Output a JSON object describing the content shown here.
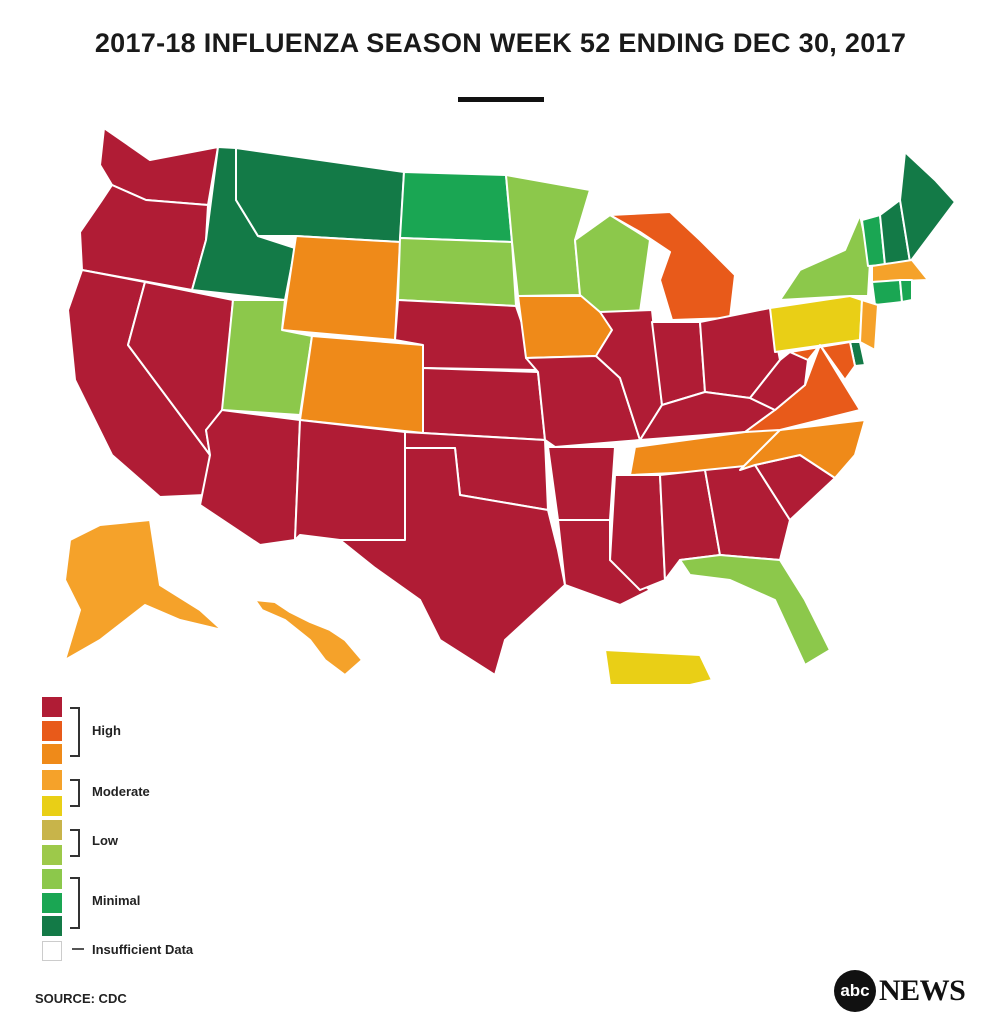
{
  "title": "2017-18 INFLUENZA SEASON WEEK 52 ENDING DEC 30, 2017",
  "source": "SOURCE: CDC",
  "logo": {
    "circle": "abc",
    "word": "NEWS"
  },
  "colors": {
    "high1": "#b01c35",
    "high2": "#e85a1a",
    "high3": "#ef8a19",
    "moderate1": "#f5a22a",
    "moderate2": "#e9cf16",
    "low1": "#c8b44a",
    "low2": "#9dc94a",
    "minimal1": "#8cc84b",
    "minimal2": "#1aa653",
    "minimal3": "#137a47",
    "insufficient": "#ffffff"
  },
  "legend": {
    "high": "High",
    "moderate": "Moderate",
    "low": "Low",
    "minimal": "Minimal",
    "insufficient": "Insufficient Data"
  },
  "states": [
    {
      "id": "WA",
      "level": "high1"
    },
    {
      "id": "OR",
      "level": "high1"
    },
    {
      "id": "CA",
      "level": "high1"
    },
    {
      "id": "NV",
      "level": "high1"
    },
    {
      "id": "ID",
      "level": "minimal3"
    },
    {
      "id": "MT",
      "level": "minimal3"
    },
    {
      "id": "WY",
      "level": "high3"
    },
    {
      "id": "UT",
      "level": "minimal1"
    },
    {
      "id": "CO",
      "level": "high3"
    },
    {
      "id": "AZ",
      "level": "high1"
    },
    {
      "id": "NM",
      "level": "high1"
    },
    {
      "id": "ND",
      "level": "minimal2"
    },
    {
      "id": "SD",
      "level": "minimal1"
    },
    {
      "id": "NE",
      "level": "high1"
    },
    {
      "id": "KS",
      "level": "high1"
    },
    {
      "id": "OK",
      "level": "high1"
    },
    {
      "id": "TX",
      "level": "high1"
    },
    {
      "id": "MN",
      "level": "minimal1"
    },
    {
      "id": "IA",
      "level": "high3"
    },
    {
      "id": "MO",
      "level": "high1"
    },
    {
      "id": "AR",
      "level": "high1"
    },
    {
      "id": "LA",
      "level": "high1"
    },
    {
      "id": "WI",
      "level": "minimal1"
    },
    {
      "id": "IL",
      "level": "high1"
    },
    {
      "id": "MI",
      "level": "high2"
    },
    {
      "id": "IN",
      "level": "high1"
    },
    {
      "id": "OH",
      "level": "high1"
    },
    {
      "id": "KY",
      "level": "high1"
    },
    {
      "id": "TN",
      "level": "high3"
    },
    {
      "id": "MS",
      "level": "high1"
    },
    {
      "id": "AL",
      "level": "high1"
    },
    {
      "id": "GA",
      "level": "high1"
    },
    {
      "id": "FL",
      "level": "minimal1"
    },
    {
      "id": "SC",
      "level": "high1"
    },
    {
      "id": "NC",
      "level": "high3"
    },
    {
      "id": "VA",
      "level": "high2"
    },
    {
      "id": "WV",
      "level": "high1"
    },
    {
      "id": "PA",
      "level": "moderate2"
    },
    {
      "id": "NY",
      "level": "minimal1"
    },
    {
      "id": "VT",
      "level": "minimal2"
    },
    {
      "id": "NH",
      "level": "minimal3"
    },
    {
      "id": "ME",
      "level": "minimal3"
    },
    {
      "id": "MA",
      "level": "moderate1"
    },
    {
      "id": "CT",
      "level": "minimal2"
    },
    {
      "id": "RI",
      "level": "minimal2"
    },
    {
      "id": "NJ",
      "level": "moderate1"
    },
    {
      "id": "DE",
      "level": "minimal3"
    },
    {
      "id": "MD",
      "level": "high2"
    },
    {
      "id": "AK",
      "level": "moderate1"
    },
    {
      "id": "HI",
      "level": "moderate1"
    },
    {
      "id": "PR",
      "level": "moderate2"
    }
  ]
}
